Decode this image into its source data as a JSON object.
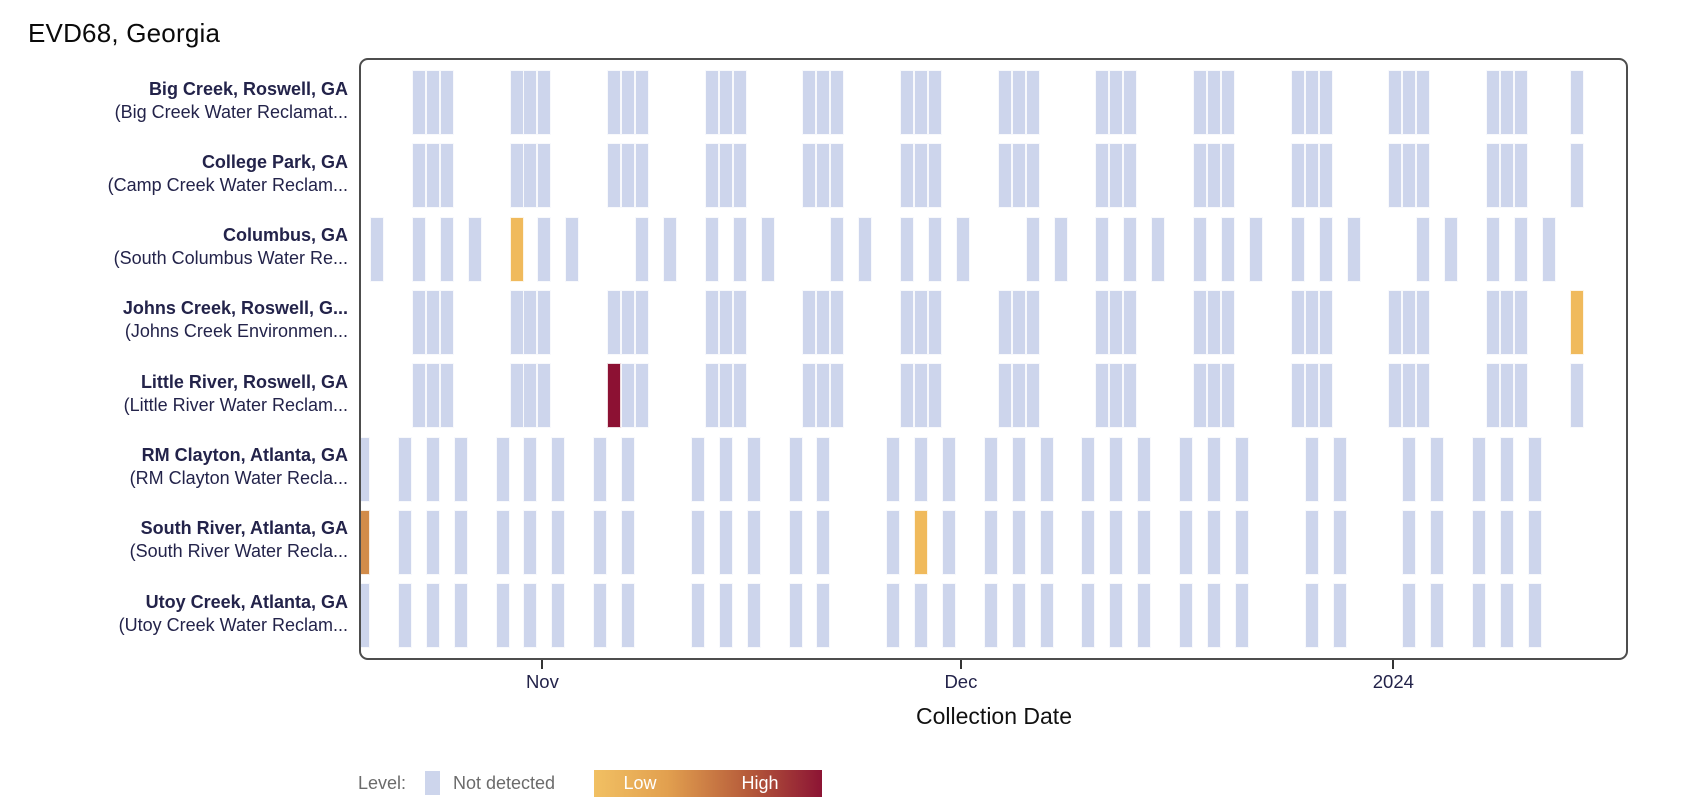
{
  "title": "EVD68, Georgia",
  "x_axis_title": "Collection Date",
  "legend": {
    "label": "Level:",
    "not_detected_label": "Not detected",
    "low_label": "Low",
    "high_label": "High"
  },
  "colors": {
    "not_detected": "#cdd5ec",
    "low": "#f0ba5c",
    "medium": "#d28c4a",
    "high": "#8c1133",
    "gradient_stops": [
      "#f1c063",
      "#e2a04f",
      "#b55a3a",
      "#8c1434"
    ],
    "panel_border": "#4d4d4d",
    "label_text": "#23234a",
    "muted_text": "#6b6b6b"
  },
  "chart_data": {
    "type": "heatmap",
    "title": "EVD68, Georgia",
    "xlabel": "Collection Date",
    "ylabel": "",
    "legend_position": "bottom",
    "grid": false,
    "x_unit": "day offset, day 0 = 2023-10-20",
    "x_range_days": [
      -1,
      87
    ],
    "x_ticks": [
      {
        "label": "Nov",
        "day": 12,
        "date": "2023-11-01"
      },
      {
        "label": "Dec",
        "day": 42,
        "date": "2023-12-01"
      },
      {
        "label": "2024",
        "day": 73,
        "date": "2024-01-01"
      }
    ],
    "levels": [
      "not_detected",
      "low",
      "medium",
      "high"
    ],
    "sample_patterns": {
      "weekly3": [
        3,
        4,
        5,
        10,
        11,
        12,
        17,
        18,
        19,
        24,
        25,
        26,
        31,
        32,
        33,
        38,
        39,
        40,
        45,
        46,
        47,
        52,
        53,
        54,
        59,
        60,
        61,
        66,
        67,
        68,
        73,
        74,
        75,
        80,
        81,
        82,
        86
      ],
      "mon_wed_fri": [
        0,
        3,
        5,
        7,
        10,
        12,
        14,
        19,
        21,
        24,
        26,
        28,
        33,
        35,
        38,
        40,
        42,
        47,
        49,
        52,
        54,
        56,
        59,
        61,
        63,
        66,
        68,
        70,
        75,
        77,
        80,
        82,
        84
      ],
      "sun_tue_thu": [
        -1,
        2,
        4,
        6,
        9,
        11,
        13,
        16,
        18,
        23,
        25,
        27,
        30,
        32,
        37,
        39,
        41,
        44,
        46,
        48,
        51,
        53,
        55,
        58,
        60,
        62,
        67,
        69,
        74,
        76,
        79,
        81,
        83
      ]
    },
    "sites": [
      {
        "name": "Big Creek, Roswell, GA",
        "facility": "(Big Creek Water Reclamat...",
        "pattern": "weekly3",
        "detections": {}
      },
      {
        "name": "College Park, GA",
        "facility": "(Camp Creek Water Reclam...",
        "pattern": "weekly3",
        "detections": {}
      },
      {
        "name": "Columbus, GA",
        "facility": "(South Columbus Water Re...",
        "pattern": "mon_wed_fri",
        "detections": {
          "10": "low"
        }
      },
      {
        "name": "Johns Creek, Roswell, G...",
        "facility": "(Johns Creek Environmen...",
        "pattern": "weekly3",
        "detections": {
          "86": "low"
        }
      },
      {
        "name": "Little River, Roswell, GA",
        "facility": "(Little River Water Reclam...",
        "pattern": "weekly3",
        "detections": {
          "17": "high"
        }
      },
      {
        "name": "RM Clayton, Atlanta, GA",
        "facility": "(RM Clayton Water Recla...",
        "pattern": "sun_tue_thu",
        "detections": {}
      },
      {
        "name": "South River, Atlanta, GA",
        "facility": "(South River Water Recla...",
        "pattern": "sun_tue_thu",
        "detections": {
          "-1": "medium",
          "39": "low"
        }
      },
      {
        "name": "Utoy Creek, Atlanta, GA",
        "facility": "(Utoy Creek Water Reclam...",
        "pattern": "sun_tue_thu",
        "detections": {}
      }
    ]
  }
}
